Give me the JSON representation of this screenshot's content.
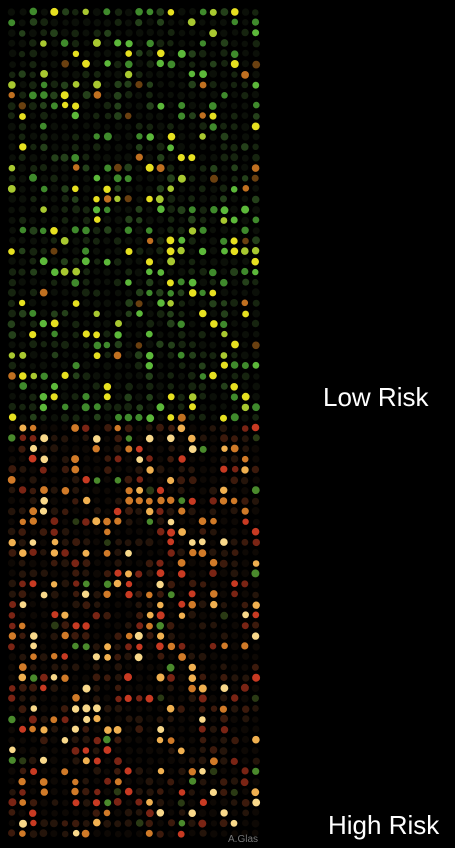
{
  "labels": {
    "low_risk": "Low Risk",
    "high_risk": "High Risk",
    "credit": "A.Glas"
  }
}
